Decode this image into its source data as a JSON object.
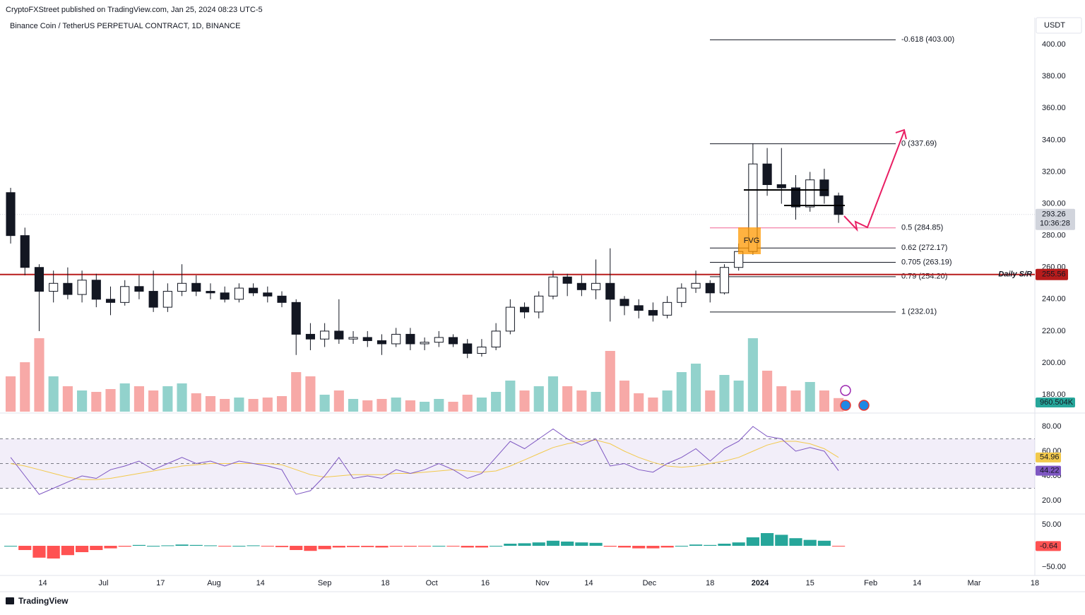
{
  "chart_data": {
    "type": "candlestick",
    "header": "CryptoFXStreet published on TradingView.com, Jan 25, 2024 08:23 UTC-5",
    "title": "Binance Coin / TetherUS PERPETUAL CONTRACT, 1D, BINANCE",
    "currency": "USDT",
    "brand": "TradingView",
    "up_color": "#26a69a",
    "down_color": "#ef5350",
    "xlim": [
      3,
      291
    ],
    "xticks": [
      {
        "value": 13,
        "label": "14"
      },
      {
        "value": 30,
        "label": "Jul"
      },
      {
        "value": 46,
        "label": "17"
      },
      {
        "value": 61,
        "label": "Aug"
      },
      {
        "value": 74,
        "label": "14"
      },
      {
        "value": 92,
        "label": "Sep"
      },
      {
        "value": 109,
        "label": "18"
      },
      {
        "value": 122,
        "label": "Oct"
      },
      {
        "value": 137,
        "label": "16"
      },
      {
        "value": 153,
        "label": "Nov"
      },
      {
        "value": 166,
        "label": "14"
      },
      {
        "value": 183,
        "label": "Dec"
      },
      {
        "value": 200,
        "label": "18"
      },
      {
        "value": 214,
        "label": "2024"
      },
      {
        "value": 228,
        "label": "15"
      },
      {
        "value": 245,
        "label": "Feb"
      },
      {
        "value": 258,
        "label": "14"
      },
      {
        "value": 274,
        "label": "Mar"
      },
      {
        "value": 291,
        "label": "18"
      }
    ],
    "ylim": [
      169.4,
      416.9
    ],
    "yticks": [
      {
        "value": 180,
        "label": "180.00"
      },
      {
        "value": 200,
        "label": "200.00"
      },
      {
        "value": 220,
        "label": "220.00"
      },
      {
        "value": 240,
        "label": "240.00"
      },
      {
        "value": 260,
        "label": "260.00"
      },
      {
        "value": 280,
        "label": "280.00"
      },
      {
        "value": 300,
        "label": "300.00"
      },
      {
        "value": 320,
        "label": "320.00"
      },
      {
        "value": 340,
        "label": "340.00"
      },
      {
        "value": 360,
        "label": "360.00"
      },
      {
        "value": 380,
        "label": "380.00"
      },
      {
        "value": 400,
        "label": "400.00"
      }
    ],
    "x": [
      4,
      8,
      12,
      16,
      20,
      24,
      28,
      32,
      36,
      40,
      44,
      48,
      52,
      56,
      60,
      64,
      68,
      72,
      76,
      80,
      84,
      88,
      92,
      96,
      100,
      104,
      108,
      112,
      116,
      120,
      124,
      128,
      132,
      136,
      140,
      144,
      148,
      152,
      156,
      160,
      164,
      168,
      172,
      176,
      180,
      184,
      188,
      192,
      196,
      200,
      204,
      208,
      212,
      216,
      220,
      224,
      228,
      232,
      236
    ],
    "candles": [
      [
        307,
        310,
        275,
        280
      ],
      [
        280,
        285,
        255,
        260
      ],
      [
        260,
        262,
        220,
        245
      ],
      [
        245,
        258,
        238,
        250
      ],
      [
        250,
        260,
        240,
        243
      ],
      [
        243,
        258,
        238,
        252
      ],
      [
        252,
        256,
        235,
        240
      ],
      [
        240,
        248,
        230,
        238
      ],
      [
        238,
        252,
        236,
        248
      ],
      [
        248,
        255,
        240,
        245
      ],
      [
        245,
        258,
        232,
        235
      ],
      [
        235,
        250,
        232,
        245
      ],
      [
        245,
        262,
        242,
        250
      ],
      [
        250,
        255,
        242,
        245
      ],
      [
        245,
        250,
        240,
        244
      ],
      [
        244,
        248,
        238,
        240
      ],
      [
        240,
        250,
        238,
        247
      ],
      [
        247,
        250,
        242,
        244
      ],
      [
        244,
        248,
        238,
        242
      ],
      [
        242,
        245,
        235,
        238
      ],
      [
        238,
        240,
        205,
        218
      ],
      [
        218,
        225,
        208,
        215
      ],
      [
        215,
        225,
        210,
        220
      ],
      [
        220,
        240,
        212,
        215
      ],
      [
        215,
        220,
        212,
        216
      ],
      [
        216,
        220,
        210,
        214
      ],
      [
        214,
        218,
        205,
        212
      ],
      [
        212,
        222,
        210,
        218
      ],
      [
        218,
        222,
        208,
        212
      ],
      [
        212,
        216,
        208,
        213
      ],
      [
        213,
        220,
        210,
        216
      ],
      [
        216,
        218,
        210,
        212
      ],
      [
        212,
        215,
        203,
        206
      ],
      [
        206,
        215,
        204,
        210
      ],
      [
        210,
        225,
        208,
        220
      ],
      [
        220,
        240,
        218,
        235
      ],
      [
        235,
        238,
        228,
        232
      ],
      [
        232,
        245,
        228,
        242
      ],
      [
        242,
        258,
        240,
        254
      ],
      [
        254,
        256,
        242,
        250
      ],
      [
        250,
        255,
        242,
        246
      ],
      [
        246,
        265,
        240,
        250
      ],
      [
        250,
        272,
        226,
        240
      ],
      [
        240,
        242,
        230,
        236
      ],
      [
        236,
        240,
        228,
        233
      ],
      [
        233,
        238,
        226,
        230
      ],
      [
        230,
        242,
        228,
        238
      ],
      [
        238,
        250,
        235,
        247
      ],
      [
        247,
        258,
        244,
        250
      ],
      [
        250,
        252,
        238,
        244
      ],
      [
        244,
        262,
        243,
        260
      ],
      [
        260,
        275,
        258,
        270
      ],
      [
        270,
        338,
        268,
        325
      ],
      [
        325,
        335,
        305,
        312
      ],
      [
        312,
        335,
        300,
        310
      ],
      [
        310,
        318,
        290,
        298
      ],
      [
        298,
        320,
        295,
        315
      ],
      [
        315,
        322,
        300,
        305
      ],
      [
        305,
        307,
        288,
        293.26
      ]
    ],
    "last_price": 293.26,
    "countdown": "10:36:28",
    "support": {
      "name": "Daily S/R",
      "price": 255.56
    },
    "fib_levels": [
      {
        "price": 403.0,
        "label": "-0.618 (403.00)"
      },
      {
        "price": 337.69,
        "label": "0 (337.69)"
      },
      {
        "price": 284.85,
        "label": "0.5 (284.85)"
      },
      {
        "price": 272.17,
        "label": "0.62 (272.17)"
      },
      {
        "price": 263.19,
        "label": "0.705 (263.19)"
      },
      {
        "price": 254.2,
        "label": "0.79 (254.20)"
      },
      {
        "price": 232.01,
        "label": "1 (232.01)"
      }
    ],
    "fvg_label": "FVG",
    "volume": {
      "vlim": [
        0,
        5500
      ],
      "values": [
        2500,
        3500,
        5200,
        2500,
        1800,
        1500,
        1400,
        1600,
        2000,
        1800,
        1500,
        1800,
        2000,
        1300,
        1100,
        900,
        1000,
        900,
        1000,
        1100,
        2800,
        2500,
        1200,
        1500,
        900,
        800,
        900,
        1000,
        800,
        700,
        900,
        700,
        1200,
        1000,
        1400,
        2200,
        1500,
        1800,
        2500,
        1800,
        1500,
        1400,
        4300,
        2200,
        1300,
        1000,
        1500,
        2800,
        3400,
        1500,
        2600,
        2200,
        5200,
        2900,
        1800,
        1500,
        2100,
        1500,
        960.504
      ],
      "last_label": "960.504K"
    },
    "rsi": {
      "ylim": [
        9.7,
        90.3
      ],
      "yticks": [
        {
          "value": 20,
          "label": "20.00"
        },
        {
          "value": 40,
          "label": "40.00"
        },
        {
          "value": 60,
          "label": "60.00"
        },
        {
          "value": 80,
          "label": "80.00"
        }
      ],
      "levels": [
        70,
        50,
        30
      ],
      "color": "#7e57c2",
      "ma_color": "#f2c94c",
      "values": [
        55,
        40,
        25,
        30,
        35,
        40,
        38,
        45,
        48,
        52,
        45,
        50,
        55,
        50,
        52,
        48,
        52,
        50,
        48,
        45,
        25,
        28,
        40,
        55,
        38,
        40,
        38,
        45,
        42,
        45,
        50,
        45,
        38,
        42,
        55,
        68,
        62,
        70,
        78,
        70,
        65,
        70,
        48,
        50,
        45,
        43,
        50,
        55,
        62,
        52,
        62,
        68,
        80,
        72,
        70,
        60,
        63,
        60,
        44.22
      ],
      "ma": [
        50,
        48,
        45,
        42,
        39,
        37,
        37,
        38,
        40,
        42,
        44,
        46,
        48,
        49,
        50,
        50,
        50,
        50,
        50,
        49,
        45,
        41,
        39,
        40,
        41,
        41,
        41,
        42,
        42,
        43,
        44,
        45,
        44,
        43,
        44,
        48,
        53,
        58,
        63,
        66,
        68,
        69,
        66,
        60,
        55,
        51,
        48,
        47,
        48,
        50,
        52,
        55,
        60,
        65,
        68,
        68,
        66,
        62,
        54.96
      ]
    },
    "macd": {
      "ylim": [
        -70,
        71.7
      ],
      "yticks": [
        {
          "value": 50,
          "label": "50.00"
        },
        {
          "value": -50,
          "label": "−50.00"
        }
      ],
      "up_color": "#26a69a",
      "down_color": "#ff5252",
      "values": [
        0,
        -10,
        -28,
        -30,
        -22,
        -15,
        -10,
        -6,
        -2,
        2,
        0,
        1,
        3,
        2,
        1,
        -1,
        0,
        1,
        -1,
        -3,
        -10,
        -12,
        -8,
        -4,
        -3,
        -3,
        -4,
        -2,
        -2,
        -1,
        0,
        -1,
        -4,
        -4,
        0,
        5,
        6,
        8,
        12,
        10,
        8,
        7,
        -2,
        -4,
        -6,
        -6,
        -4,
        0,
        3,
        2,
        5,
        8,
        20,
        30,
        26,
        18,
        14,
        12,
        -0.64
      ]
    }
  }
}
